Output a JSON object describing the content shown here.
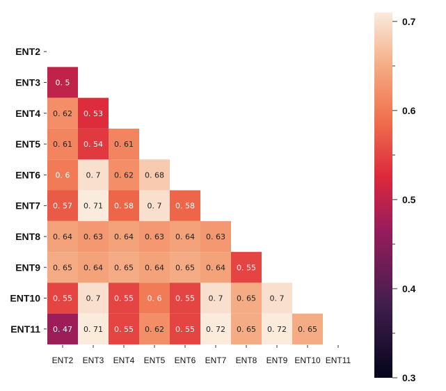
{
  "chart_data": {
    "type": "heatmap",
    "title": "",
    "xlabel": "",
    "ylabel": "",
    "x_categories": [
      "ENT2",
      "ENT3",
      "ENT4",
      "ENT5",
      "ENT6",
      "ENT7",
      "ENT8",
      "ENT9",
      "ENT10",
      "ENT11"
    ],
    "y_categories": [
      "ENT2",
      "ENT3",
      "ENT4",
      "ENT5",
      "ENT6",
      "ENT7",
      "ENT8",
      "ENT9",
      "ENT10",
      "ENT11"
    ],
    "mask": "upper-triangle-including-diagonal",
    "rows": [
      {
        "row": "ENT3",
        "values": [
          0.5
        ]
      },
      {
        "row": "ENT4",
        "values": [
          0.62,
          0.53
        ]
      },
      {
        "row": "ENT5",
        "values": [
          0.61,
          0.54,
          0.61
        ]
      },
      {
        "row": "ENT6",
        "values": [
          0.6,
          0.7,
          0.62,
          0.68
        ]
      },
      {
        "row": "ENT7",
        "values": [
          0.57,
          0.71,
          0.58,
          0.7,
          0.58
        ]
      },
      {
        "row": "ENT8",
        "values": [
          0.64,
          0.63,
          0.64,
          0.63,
          0.64,
          0.63
        ]
      },
      {
        "row": "ENT9",
        "values": [
          0.65,
          0.64,
          0.65,
          0.64,
          0.65,
          0.64,
          0.55
        ]
      },
      {
        "row": "ENT10",
        "values": [
          0.55,
          0.7,
          0.55,
          0.6,
          0.55,
          0.7,
          0.65,
          0.7
        ]
      },
      {
        "row": "ENT11",
        "values": [
          0.47,
          0.71,
          0.55,
          0.62,
          0.55,
          0.72,
          0.65,
          0.72,
          0.65
        ]
      }
    ],
    "colorbar": {
      "min": 0.3,
      "max": 0.71,
      "ticks": [
        0.3,
        0.4,
        0.5,
        0.6,
        0.7
      ],
      "tick_labels": [
        "0.3",
        "0.4",
        "0.5",
        "0.6",
        "0.7"
      ],
      "minor_ticks": [
        0.35,
        0.45,
        0.55,
        0.65
      ],
      "colormap": "rocket",
      "placement": "right"
    },
    "grid": false,
    "legend": "colorbar-right"
  }
}
